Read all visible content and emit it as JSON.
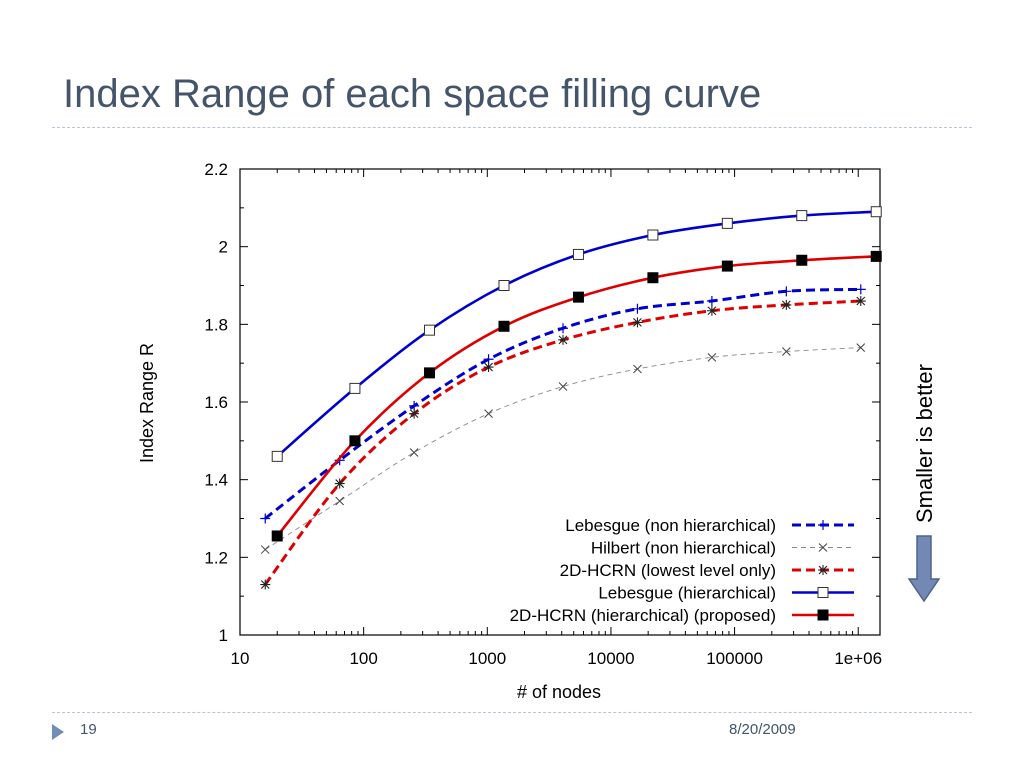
{
  "slide": {
    "title": "Index Range of each space filling curve",
    "side_note": "Smaller is better",
    "number": "19",
    "date": "8/20/2009",
    "arrow_color": "#7389b3"
  },
  "chart_data": {
    "type": "line",
    "xlabel": "# of nodes",
    "ylabel": "Index Range R",
    "xscale": "log",
    "xlim": [
      10,
      1500000
    ],
    "ylim": [
      1,
      2.2
    ],
    "x_ticks": [
      10,
      100,
      1000,
      10000,
      100000,
      1000000
    ],
    "x_tick_labels": [
      "10",
      "100",
      "1000",
      "10000",
      "100000",
      "1e+06"
    ],
    "y_ticks": [
      1,
      1.2,
      1.4,
      1.6,
      1.8,
      2,
      2.2
    ],
    "y_tick_labels": [
      "1",
      "1.2",
      "1.4",
      "1.6",
      "1.8",
      "2",
      "2.2"
    ],
    "grid": false,
    "legend_position": "bottom-right",
    "series": [
      {
        "name": "Lebesgue (non hierarchical)",
        "color": "#0000cc",
        "dash": "dashed",
        "marker": "plus",
        "x": [
          16,
          64,
          256,
          1024,
          4096,
          16384,
          65536,
          262144,
          1048576
        ],
        "y": [
          1.3,
          1.45,
          1.59,
          1.71,
          1.79,
          1.84,
          1.86,
          1.885,
          1.89
        ]
      },
      {
        "name": "Hilbert (non hierarchical)",
        "color": "#888888",
        "dash": "thin-dashed",
        "marker": "x",
        "x": [
          16,
          64,
          256,
          1024,
          4096,
          16384,
          65536,
          262144,
          1048576
        ],
        "y": [
          1.22,
          1.345,
          1.47,
          1.57,
          1.64,
          1.685,
          1.715,
          1.73,
          1.74
        ]
      },
      {
        "name": "2D-HCRN (lowest level only)",
        "color": "#dd0000",
        "dash": "dashed",
        "marker": "star",
        "x": [
          16,
          64,
          256,
          1024,
          4096,
          16384,
          65536,
          262144,
          1048576
        ],
        "y": [
          1.13,
          1.39,
          1.57,
          1.69,
          1.76,
          1.805,
          1.835,
          1.85,
          1.86
        ]
      },
      {
        "name": "Lebesgue (hierarchical)",
        "color": "#0000cc",
        "dash": "solid",
        "marker": "open-square",
        "x": [
          20,
          85,
          341,
          1365,
          5461,
          21845,
          87381,
          349525,
          1398101
        ],
        "y": [
          1.46,
          1.635,
          1.785,
          1.9,
          1.98,
          2.03,
          2.06,
          2.08,
          2.09
        ]
      },
      {
        "name": "2D-HCRN (hierarchical) (proposed)",
        "color": "#dd0000",
        "dash": "solid",
        "marker": "filled-square",
        "x": [
          20,
          85,
          341,
          1365,
          5461,
          21845,
          87381,
          349525,
          1398101
        ],
        "y": [
          1.255,
          1.5,
          1.675,
          1.795,
          1.87,
          1.92,
          1.95,
          1.965,
          1.975
        ]
      }
    ]
  }
}
